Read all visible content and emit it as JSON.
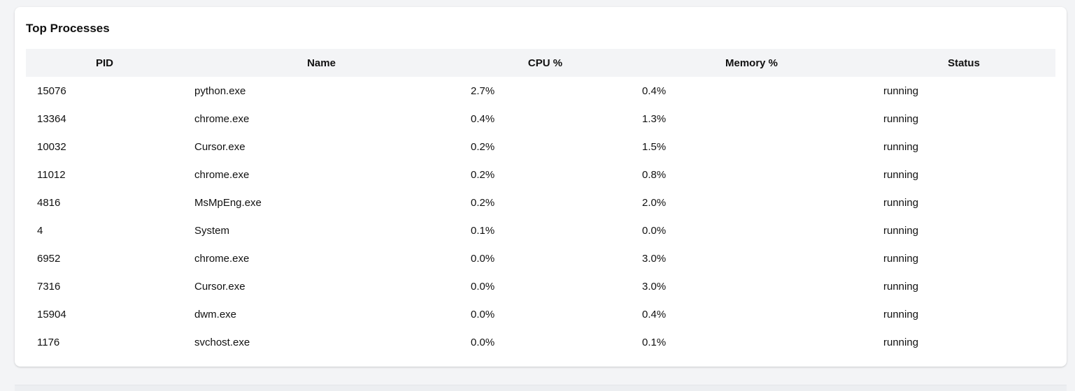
{
  "card": {
    "title": "Top Processes"
  },
  "table": {
    "columns": [
      "PID",
      "Name",
      "CPU %",
      "Memory %",
      "Status"
    ],
    "rows": [
      [
        "15076",
        "python.exe",
        "2.7%",
        "0.4%",
        "running"
      ],
      [
        "13364",
        "chrome.exe",
        "0.4%",
        "1.3%",
        "running"
      ],
      [
        "10032",
        "Cursor.exe",
        "0.2%",
        "1.5%",
        "running"
      ],
      [
        "11012",
        "chrome.exe",
        "0.2%",
        "0.8%",
        "running"
      ],
      [
        "4816",
        "MsMpEng.exe",
        "0.2%",
        "2.0%",
        "running"
      ],
      [
        "4",
        "System",
        "0.1%",
        "0.0%",
        "running"
      ],
      [
        "6952",
        "chrome.exe",
        "0.0%",
        "3.0%",
        "running"
      ],
      [
        "7316",
        "Cursor.exe",
        "0.0%",
        "3.0%",
        "running"
      ],
      [
        "15904",
        "dwm.exe",
        "0.0%",
        "0.4%",
        "running"
      ],
      [
        "1176",
        "svchost.exe",
        "0.0%",
        "0.1%",
        "running"
      ]
    ]
  }
}
